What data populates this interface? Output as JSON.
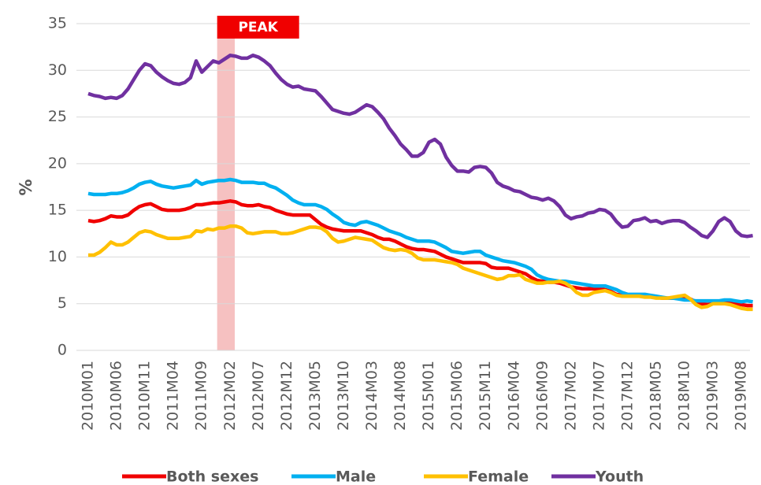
{
  "chart_data": {
    "type": "line",
    "y_label": "%",
    "annotation": {
      "text": "PEAK",
      "x_range": [
        22.7,
        25.8
      ],
      "color": "#f4b6b6"
    },
    "ylim": [
      0,
      35
    ],
    "yticks": [
      0,
      5,
      10,
      15,
      20,
      25,
      30,
      35
    ],
    "grid": true,
    "legend": "bottom",
    "categories": [
      "2010M01",
      null,
      null,
      null,
      null,
      "2010M06",
      null,
      null,
      null,
      null,
      "2010M11",
      null,
      null,
      null,
      null,
      "2011M04",
      null,
      null,
      null,
      null,
      "2011M09",
      null,
      null,
      null,
      null,
      "2012M02",
      null,
      null,
      null,
      null,
      "2012M07",
      null,
      null,
      null,
      null,
      "2012M12",
      null,
      null,
      null,
      null,
      "2013M05",
      null,
      null,
      null,
      null,
      "2013M10",
      null,
      null,
      null,
      null,
      "2014M03",
      null,
      null,
      null,
      null,
      "2014M08",
      null,
      null,
      null,
      null,
      "2015M01",
      null,
      null,
      null,
      null,
      "2015M06",
      null,
      null,
      null,
      null,
      "2015M11",
      null,
      null,
      null,
      null,
      "2016M04",
      null,
      null,
      null,
      null,
      "2016M09",
      null,
      null,
      null,
      null,
      "2017M02",
      null,
      null,
      null,
      null,
      "2017M07",
      null,
      null,
      null,
      null,
      "2017M12",
      null,
      null,
      null,
      null,
      "2018M05",
      null,
      null,
      null,
      null,
      "2018M10",
      null,
      null,
      null,
      null,
      "2019M03",
      null,
      null,
      null,
      null,
      "2019M08",
      null,
      null
    ],
    "series": [
      {
        "name": "Both sexes",
        "color": "#f00000",
        "values": [
          13.9,
          13.8,
          13.9,
          14.1,
          14.4,
          14.3,
          14.3,
          14.5,
          15.0,
          15.4,
          15.6,
          15.7,
          15.4,
          15.1,
          15.0,
          15.0,
          15.0,
          15.1,
          15.3,
          15.6,
          15.6,
          15.7,
          15.8,
          15.8,
          15.9,
          16.0,
          15.9,
          15.6,
          15.5,
          15.5,
          15.6,
          15.4,
          15.3,
          15.0,
          14.8,
          14.6,
          14.5,
          14.5,
          14.5,
          14.5,
          14.0,
          13.5,
          13.2,
          13.0,
          12.9,
          12.8,
          12.8,
          12.8,
          12.8,
          12.6,
          12.4,
          12.1,
          11.9,
          11.9,
          11.7,
          11.4,
          11.1,
          10.9,
          10.8,
          10.8,
          10.7,
          10.6,
          10.3,
          10.0,
          9.8,
          9.6,
          9.4,
          9.4,
          9.4,
          9.4,
          9.3,
          8.9,
          8.8,
          8.8,
          8.8,
          8.6,
          8.4,
          8.2,
          7.8,
          7.5,
          7.4,
          7.3,
          7.3,
          7.2,
          7.0,
          6.8,
          6.7,
          6.6,
          6.6,
          6.6,
          6.6,
          6.5,
          6.3,
          6.0,
          5.9,
          5.9,
          5.9,
          5.9,
          5.8,
          5.8,
          5.7,
          5.6,
          5.6,
          5.6,
          5.6,
          5.6,
          5.5,
          5.2,
          5.0,
          4.9,
          5.0,
          5.1,
          5.1,
          5.1,
          5.0,
          4.9,
          4.8,
          4.8
        ]
      },
      {
        "name": "Male",
        "color": "#00b0f0",
        "values": [
          16.8,
          16.7,
          16.7,
          16.7,
          16.8,
          16.8,
          16.9,
          17.1,
          17.4,
          17.8,
          18.0,
          18.1,
          17.8,
          17.6,
          17.5,
          17.4,
          17.5,
          17.6,
          17.7,
          18.2,
          17.8,
          18.0,
          18.1,
          18.2,
          18.2,
          18.3,
          18.2,
          18.0,
          18.0,
          18.0,
          17.9,
          17.9,
          17.6,
          17.4,
          17.0,
          16.6,
          16.1,
          15.8,
          15.6,
          15.6,
          15.6,
          15.4,
          15.1,
          14.6,
          14.2,
          13.7,
          13.5,
          13.4,
          13.7,
          13.8,
          13.6,
          13.4,
          13.1,
          12.8,
          12.6,
          12.4,
          12.1,
          11.9,
          11.7,
          11.7,
          11.7,
          11.6,
          11.3,
          11.0,
          10.6,
          10.5,
          10.4,
          10.5,
          10.6,
          10.6,
          10.2,
          10.0,
          9.8,
          9.6,
          9.5,
          9.4,
          9.2,
          9.0,
          8.7,
          8.1,
          7.8,
          7.6,
          7.5,
          7.4,
          7.4,
          7.3,
          7.2,
          7.1,
          7.0,
          6.9,
          6.9,
          6.9,
          6.7,
          6.5,
          6.2,
          6.0,
          6.0,
          6.0,
          6.0,
          5.9,
          5.8,
          5.7,
          5.6,
          5.6,
          5.5,
          5.4,
          5.4,
          5.3,
          5.3,
          5.3,
          5.3,
          5.3,
          5.4,
          5.4,
          5.3,
          5.2,
          5.3,
          5.2
        ]
      },
      {
        "name": "Female",
        "color": "#ffc000",
        "values": [
          10.2,
          10.2,
          10.5,
          11.0,
          11.6,
          11.3,
          11.3,
          11.6,
          12.1,
          12.6,
          12.8,
          12.7,
          12.4,
          12.2,
          12.0,
          12.0,
          12.0,
          12.1,
          12.2,
          12.8,
          12.7,
          13.0,
          12.9,
          13.1,
          13.1,
          13.3,
          13.3,
          13.1,
          12.6,
          12.5,
          12.6,
          12.7,
          12.7,
          12.7,
          12.5,
          12.5,
          12.6,
          12.8,
          13.0,
          13.2,
          13.2,
          13.1,
          12.7,
          12.0,
          11.6,
          11.7,
          11.9,
          12.1,
          12.0,
          11.9,
          11.8,
          11.4,
          11.0,
          10.8,
          10.7,
          10.8,
          10.7,
          10.4,
          9.9,
          9.7,
          9.7,
          9.7,
          9.6,
          9.5,
          9.4,
          9.2,
          8.8,
          8.6,
          8.4,
          8.2,
          8.0,
          7.8,
          7.6,
          7.7,
          8.0,
          8.0,
          8.1,
          7.6,
          7.4,
          7.2,
          7.2,
          7.3,
          7.3,
          7.4,
          7.2,
          6.8,
          6.2,
          5.9,
          5.9,
          6.2,
          6.3,
          6.4,
          6.2,
          5.9,
          5.8,
          5.8,
          5.8,
          5.8,
          5.7,
          5.7,
          5.6,
          5.6,
          5.6,
          5.7,
          5.8,
          5.9,
          5.5,
          4.9,
          4.6,
          4.7,
          5.0,
          5.0,
          5.0,
          4.9,
          4.7,
          4.5,
          4.4,
          4.4
        ]
      },
      {
        "name": "Youth",
        "color": "#7030a0",
        "values": [
          27.5,
          27.3,
          27.2,
          27.0,
          27.1,
          27.0,
          27.3,
          28.0,
          29.0,
          30.0,
          30.7,
          30.5,
          29.8,
          29.3,
          28.9,
          28.6,
          28.5,
          28.7,
          29.2,
          31.0,
          29.8,
          30.4,
          31.0,
          30.8,
          31.2,
          31.6,
          31.5,
          31.3,
          31.3,
          31.6,
          31.4,
          31.0,
          30.5,
          29.7,
          29.0,
          28.5,
          28.2,
          28.3,
          28.0,
          27.9,
          27.8,
          27.2,
          26.5,
          25.8,
          25.6,
          25.4,
          25.3,
          25.5,
          25.9,
          26.3,
          26.1,
          25.5,
          24.8,
          23.8,
          23.0,
          22.1,
          21.5,
          20.8,
          20.8,
          21.2,
          22.3,
          22.6,
          22.1,
          20.7,
          19.8,
          19.2,
          19.2,
          19.1,
          19.6,
          19.7,
          19.6,
          19.0,
          18.0,
          17.6,
          17.4,
          17.1,
          17.0,
          16.7,
          16.4,
          16.3,
          16.1,
          16.3,
          16.0,
          15.4,
          14.5,
          14.1,
          14.3,
          14.4,
          14.7,
          14.8,
          15.1,
          15.0,
          14.6,
          13.8,
          13.2,
          13.3,
          13.9,
          14.0,
          14.2,
          13.8,
          13.9,
          13.6,
          13.8,
          13.9,
          13.9,
          13.7,
          13.2,
          12.8,
          12.3,
          12.1,
          12.8,
          13.8,
          14.2,
          13.8,
          12.8,
          12.3,
          12.2,
          12.3
        ]
      }
    ]
  }
}
